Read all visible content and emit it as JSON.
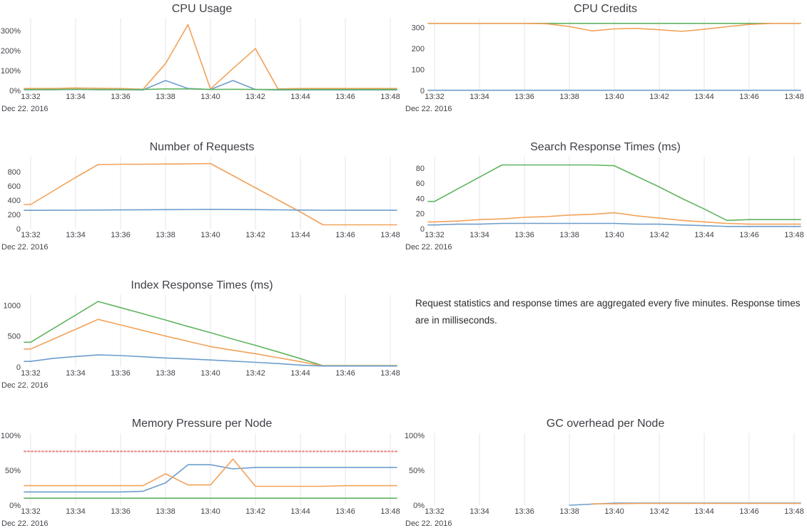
{
  "note": {
    "text": "Request statistics and response times are aggregated every five minutes. Response times are in milliseconds."
  },
  "colors": {
    "blue": "#6d9dcd",
    "orange": "#f2a259",
    "green": "#60b460",
    "red-dashed": "#e87d7e",
    "grid": "#e6e6ec",
    "title_text": "#3e3e46",
    "tick_text": "#43434b"
  },
  "chart_data": [
    {
      "type": "line",
      "title": "CPU Usage",
      "grid": "vertical",
      "legend": "none",
      "x_axis_date": "Dec 22. 2016",
      "x_tick_labels": [
        "13:32",
        "13:34",
        "13:36",
        "13:38",
        "13:40",
        "13:42",
        "13:44",
        "13:46",
        "13:48"
      ],
      "x_tick_positions": [
        0,
        2,
        4,
        6,
        8,
        10,
        12,
        14,
        16
      ],
      "ylim": [
        0,
        350
      ],
      "yticks": [
        {
          "value": 0,
          "label": "0%"
        },
        {
          "value": 100,
          "label": "100%"
        },
        {
          "value": 200,
          "label": "200%"
        },
        {
          "value": 300,
          "label": "300%"
        }
      ],
      "series": [
        {
          "name": "orange",
          "color": "orange",
          "dashed": false,
          "values": [
            10,
            10,
            13,
            11,
            10,
            6,
            135,
            330,
            8,
            110,
            210,
            8,
            10,
            10,
            10,
            10,
            10
          ]
        },
        {
          "name": "blue",
          "color": "blue",
          "dashed": false,
          "values": [
            4,
            4,
            5,
            4,
            4,
            3,
            50,
            10,
            5,
            50,
            5,
            3,
            3,
            3,
            3,
            3,
            3
          ]
        },
        {
          "name": "green",
          "color": "green",
          "dashed": false,
          "values": [
            5,
            5,
            6,
            5,
            5,
            5,
            8,
            8,
            5,
            6,
            5,
            5,
            5,
            5,
            5,
            5,
            5
          ]
        }
      ]
    },
    {
      "type": "line",
      "title": "CPU Credits",
      "grid": "vertical",
      "legend": "none",
      "x_axis_date": "Dec 22. 2016",
      "x_tick_labels": [
        "13:32",
        "13:34",
        "13:36",
        "13:38",
        "13:40",
        "13:42",
        "13:44",
        "13:46",
        "13:48"
      ],
      "x_tick_positions": [
        0,
        2,
        4,
        6,
        8,
        10,
        12,
        14,
        16
      ],
      "ylim": [
        0,
        333
      ],
      "yticks": [
        {
          "value": 0,
          "label": "0"
        },
        {
          "value": 100,
          "label": "100"
        },
        {
          "value": 200,
          "label": "200"
        },
        {
          "value": 300,
          "label": "300"
        }
      ],
      "series": [
        {
          "name": "green",
          "color": "green",
          "dashed": false,
          "values": [
            320,
            320,
            320,
            320,
            320,
            320,
            320,
            320,
            320,
            320,
            320,
            320,
            320,
            320,
            320,
            320,
            320
          ]
        },
        {
          "name": "orange",
          "color": "orange",
          "dashed": false,
          "values": [
            320,
            320,
            320,
            320,
            320,
            318,
            305,
            284,
            294,
            296,
            290,
            282,
            292,
            304,
            315,
            320,
            320
          ]
        },
        {
          "name": "blue",
          "color": "blue",
          "dashed": false,
          "values": [
            1,
            1,
            1,
            1,
            1,
            1,
            1,
            1,
            1,
            1,
            1,
            1,
            1,
            1,
            1,
            1,
            1
          ]
        }
      ]
    },
    {
      "type": "line",
      "title": "Number of Requests",
      "grid": "vertical",
      "legend": "none",
      "x_axis_date": "Dec 22. 2016",
      "x_tick_labels": [
        "13:32",
        "13:34",
        "13:36",
        "13:38",
        "13:40",
        "13:42",
        "13:44",
        "13:46",
        "13:48"
      ],
      "x_tick_positions": [
        0,
        2,
        4,
        6,
        8,
        10,
        12,
        14,
        16
      ],
      "ylim": [
        0,
        980
      ],
      "yticks": [
        {
          "value": 0,
          "label": "0"
        },
        {
          "value": 200,
          "label": "200"
        },
        {
          "value": 400,
          "label": "400"
        },
        {
          "value": 600,
          "label": "600"
        },
        {
          "value": 800,
          "label": "800"
        }
      ],
      "series": [
        {
          "name": "orange",
          "color": "orange",
          "dashed": false,
          "values": [
            340,
            530,
            720,
            900,
            905,
            905,
            908,
            910,
            915,
            745,
            575,
            405,
            235,
            55,
            55,
            55,
            55
          ]
        },
        {
          "name": "blue",
          "color": "blue",
          "dashed": false,
          "values": [
            258,
            259,
            260,
            262,
            264,
            266,
            268,
            270,
            272,
            271,
            268,
            265,
            262,
            260,
            259,
            259,
            259
          ]
        }
      ]
    },
    {
      "type": "line",
      "title": "Search Response Times (ms)",
      "grid": "vertical",
      "legend": "none",
      "x_axis_date": "Dec 22. 2016",
      "x_tick_labels": [
        "13:32",
        "13:34",
        "13:36",
        "13:38",
        "13:40",
        "13:42",
        "13:44",
        "13:46",
        "13:48"
      ],
      "x_tick_positions": [
        0,
        2,
        4,
        6,
        8,
        10,
        12,
        14,
        16
      ],
      "ylim": [
        0,
        92
      ],
      "yticks": [
        {
          "value": 0,
          "label": "0"
        },
        {
          "value": 20,
          "label": "20"
        },
        {
          "value": 40,
          "label": "40"
        },
        {
          "value": 60,
          "label": "60"
        },
        {
          "value": 80,
          "label": "80"
        }
      ],
      "series": [
        {
          "name": "green",
          "color": "green",
          "dashed": false,
          "values": [
            36,
            52,
            68,
            84,
            84,
            84,
            84,
            84,
            83,
            69,
            55,
            40,
            26,
            11,
            12,
            12,
            12
          ]
        },
        {
          "name": "orange",
          "color": "orange",
          "dashed": false,
          "values": [
            9,
            10,
            12,
            13,
            15,
            16,
            18,
            19,
            21,
            17,
            14,
            11,
            9,
            7,
            6,
            6,
            6
          ]
        },
        {
          "name": "blue",
          "color": "blue",
          "dashed": false,
          "values": [
            5,
            6,
            6,
            7,
            7,
            7,
            7,
            7,
            7,
            6,
            6,
            5,
            4,
            3,
            3,
            3,
            3
          ]
        }
      ]
    },
    {
      "type": "line",
      "title": "Index Response Times (ms)",
      "grid": "vertical",
      "legend": "none",
      "x_axis_date": "Dec 22. 2016",
      "x_tick_labels": [
        "13:32",
        "13:34",
        "13:36",
        "13:38",
        "13:40",
        "13:42",
        "13:44",
        "13:46",
        "13:48"
      ],
      "x_tick_positions": [
        0,
        2,
        4,
        6,
        8,
        10,
        12,
        14,
        16
      ],
      "ylim": [
        0,
        1130
      ],
      "yticks": [
        {
          "value": 0,
          "label": "0"
        },
        {
          "value": 500,
          "label": "500"
        },
        {
          "value": 1000,
          "label": "1000"
        }
      ],
      "series": [
        {
          "name": "green",
          "color": "green",
          "dashed": false,
          "values": [
            400,
            620,
            840,
            1060,
            960,
            860,
            760,
            655,
            555,
            450,
            350,
            245,
            135,
            22,
            22,
            22,
            22
          ]
        },
        {
          "name": "orange",
          "color": "orange",
          "dashed": false,
          "values": [
            290,
            450,
            610,
            770,
            680,
            590,
            500,
            415,
            330,
            270,
            215,
            150,
            85,
            20,
            20,
            20,
            20
          ]
        },
        {
          "name": "blue",
          "color": "blue",
          "dashed": false,
          "values": [
            90,
            140,
            170,
            195,
            185,
            165,
            145,
            130,
            113,
            95,
            75,
            55,
            30,
            15,
            15,
            15,
            15
          ]
        }
      ]
    },
    {
      "type": "line",
      "title": "Memory Pressure per Node",
      "grid": "vertical",
      "legend": "none",
      "x_axis_date": "Dec 22. 2016",
      "x_tick_labels": [
        "13:32",
        "13:34",
        "13:36",
        "13:38",
        "13:40",
        "13:42",
        "13:44",
        "13:46",
        "13:48"
      ],
      "x_tick_positions": [
        0,
        2,
        4,
        6,
        8,
        10,
        12,
        14,
        16
      ],
      "ylim": [
        0,
        100
      ],
      "yticks": [
        {
          "value": 0,
          "label": "0%"
        },
        {
          "value": 50,
          "label": "50%"
        },
        {
          "value": 100,
          "label": "100%"
        }
      ],
      "series": [
        {
          "name": "red-dashed",
          "color": "red-dashed",
          "dashed": true,
          "values": [
            77,
            77,
            77,
            77,
            77,
            77,
            77,
            77,
            77,
            77,
            77,
            77,
            77,
            77,
            77,
            77,
            77
          ]
        },
        {
          "name": "blue",
          "color": "blue",
          "dashed": false,
          "values": [
            19,
            19,
            19,
            19,
            19,
            20,
            32,
            58,
            58,
            52,
            54,
            54,
            54,
            54,
            54,
            54,
            54
          ]
        },
        {
          "name": "orange",
          "color": "orange",
          "dashed": false,
          "values": [
            28,
            28,
            28,
            28,
            28,
            28,
            45,
            29,
            29,
            66,
            27,
            27,
            27,
            27,
            28,
            28,
            28
          ]
        },
        {
          "name": "green",
          "color": "green",
          "dashed": false,
          "values": [
            10,
            10,
            10,
            10,
            10,
            10,
            10,
            10,
            10,
            10,
            10,
            10,
            10,
            10,
            10,
            10,
            10
          ]
        }
      ]
    },
    {
      "type": "line",
      "title": "GC overhead per Node",
      "grid": "vertical",
      "legend": "none",
      "x_axis_date": "Dec 22. 2016",
      "x_tick_labels": [
        "13:32",
        "13:34",
        "13:36",
        "13:38",
        "13:40",
        "13:42",
        "13:44",
        "13:46",
        "13:48"
      ],
      "x_tick_positions": [
        0,
        2,
        4,
        6,
        8,
        10,
        12,
        14,
        16
      ],
      "ylim": [
        0,
        100
      ],
      "yticks": [
        {
          "value": 0,
          "label": "0%"
        },
        {
          "value": 50,
          "label": "50%"
        },
        {
          "value": 100,
          "label": "100%"
        }
      ],
      "series": [
        {
          "name": "blue",
          "color": "blue",
          "dashed": false,
          "values": [
            null,
            null,
            null,
            null,
            null,
            null,
            0,
            1.5,
            3,
            3,
            3,
            3,
            3,
            3,
            3,
            3,
            3
          ]
        },
        {
          "name": "orange",
          "color": "orange",
          "dashed": false,
          "values": [
            null,
            null,
            null,
            null,
            null,
            null,
            null,
            2,
            2,
            2.5,
            2.5,
            2.5,
            2.5,
            2.5,
            2.5,
            2.5,
            2.5
          ]
        }
      ]
    }
  ]
}
